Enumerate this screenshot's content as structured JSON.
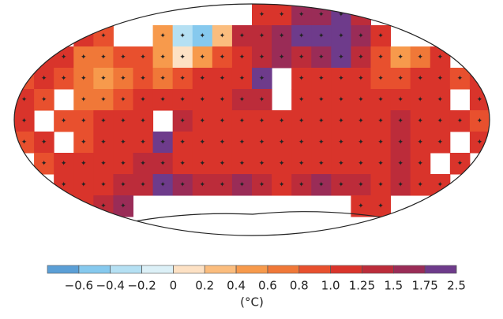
{
  "map": {
    "grid": [
      [
        null,
        null,
        null,
        null,
        null,
        null,
        null,
        null,
        null,
        null,
        null,
        null,
        1.1,
        1.2,
        1.5,
        1.6,
        1.8,
        1.3,
        null,
        null,
        null,
        null,
        null,
        null
      ],
      [
        null,
        null,
        null,
        1.0,
        0.9,
        null,
        null,
        0.5,
        -0.3,
        -0.5,
        0.3,
        1.3,
        1.4,
        1.6,
        1.8,
        2.0,
        1.9,
        1.5,
        1.2,
        null,
        null,
        null,
        null,
        null
      ],
      [
        null,
        1.0,
        1.1,
        0.7,
        0.6,
        0.8,
        0.9,
        0.4,
        0.1,
        0.5,
        0.9,
        1.1,
        1.3,
        1.5,
        1.4,
        1.6,
        1.8,
        1.3,
        0.9,
        0.5,
        0.7,
        1.0,
        null,
        null
      ],
      [
        0.9,
        1.0,
        0.8,
        0.6,
        0.5,
        0.7,
        0.8,
        0.7,
        0.9,
        1.0,
        1.1,
        1.2,
        1.9,
        null,
        1.2,
        1.1,
        1.0,
        1.1,
        0.9,
        0.8,
        1.0,
        1.1,
        0.9,
        1.0
      ],
      [
        1.0,
        0.9,
        null,
        0.7,
        0.6,
        0.9,
        1.0,
        1.1,
        1.2,
        1.0,
        1.1,
        1.3,
        1.4,
        null,
        1.1,
        1.0,
        1.0,
        1.2,
        1.0,
        1.1,
        1.0,
        1.2,
        null,
        1.0
      ],
      [
        1.0,
        null,
        0.8,
        0.9,
        1.0,
        1.1,
        1.2,
        null,
        1.3,
        1.1,
        1.0,
        1.1,
        1.2,
        1.1,
        1.2,
        1.0,
        1.1,
        1.2,
        1.1,
        1.3,
        1.2,
        1.0,
        1.0,
        0.9
      ],
      [
        0.9,
        1.0,
        null,
        0.8,
        1.0,
        1.1,
        1.2,
        1.9,
        1.2,
        1.0,
        1.1,
        1.2,
        1.1,
        1.0,
        1.1,
        1.2,
        1.1,
        1.0,
        1.2,
        1.3,
        1.2,
        1.1,
        null,
        1.0
      ],
      [
        null,
        0.9,
        1.0,
        1.1,
        1.0,
        1.1,
        1.3,
        1.4,
        1.2,
        1.1,
        1.2,
        1.1,
        1.0,
        1.1,
        1.2,
        1.1,
        1.0,
        1.2,
        1.1,
        1.3,
        1.0,
        null,
        1.1,
        null
      ],
      [
        null,
        null,
        1.0,
        1.1,
        1.2,
        1.4,
        1.3,
        1.9,
        1.5,
        1.3,
        1.4,
        1.5,
        1.3,
        1.2,
        1.4,
        1.5,
        1.3,
        1.4,
        1.2,
        1.3,
        1.2,
        1.0,
        null,
        null
      ],
      [
        null,
        null,
        null,
        1.2,
        1.3,
        1.5,
        null,
        null,
        null,
        null,
        null,
        null,
        null,
        null,
        null,
        null,
        null,
        1.1,
        1.0,
        null,
        null,
        null,
        null,
        null
      ]
    ]
  },
  "colorbar": {
    "colors": [
      "#5b9fd6",
      "#86c9ee",
      "#b5e0f3",
      "#dcf0f7",
      "#fde1c4",
      "#fbbd7e",
      "#f79a4c",
      "#f07838",
      "#e8502e",
      "#d9342b",
      "#bc2c3a",
      "#9a2c57",
      "#6e3b8b"
    ],
    "ticks": [
      {
        "value": -0.6,
        "label": "−0.6"
      },
      {
        "value": -0.4,
        "label": "−0.4"
      },
      {
        "value": -0.2,
        "label": "−0.2"
      },
      0,
      0.2,
      0.4,
      0.6,
      0.8,
      {
        "value": 1.0,
        "label": "1.0"
      },
      1.25,
      1.5,
      1.75,
      2.5
    ],
    "unit": "(°C)"
  }
}
